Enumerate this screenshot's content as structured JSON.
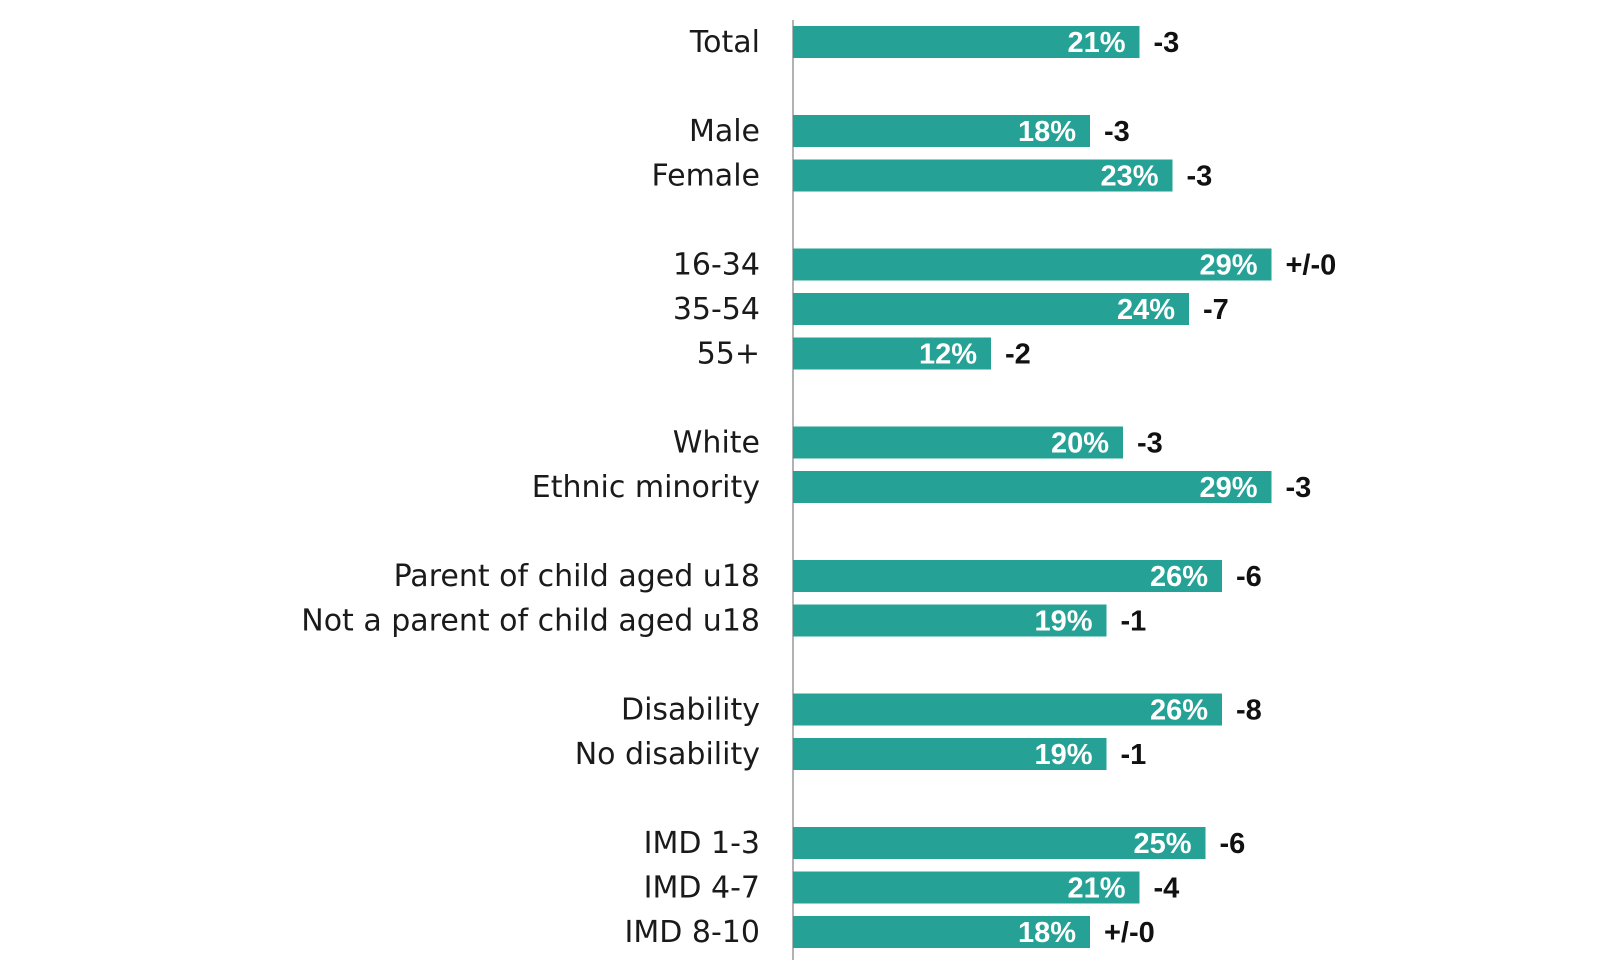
{
  "chart_data": {
    "type": "bar",
    "orientation": "horizontal",
    "title": "",
    "xlabel": "",
    "ylabel": "",
    "xlim": [
      0,
      55
    ],
    "grid": false,
    "legend": "none",
    "bar_color": "#26a195",
    "axis_color": "#999999",
    "groups": [
      [
        {
          "category": "Total",
          "value": 21,
          "value_label": "21%",
          "change": "-3"
        }
      ],
      [
        {
          "category": "Male",
          "value": 18,
          "value_label": "18%",
          "change": "-3"
        },
        {
          "category": "Female",
          "value": 23,
          "value_label": "23%",
          "change": "-3"
        }
      ],
      [
        {
          "category": "16-34",
          "value": 29,
          "value_label": "29%",
          "change": "+/-0"
        },
        {
          "category": "35-54",
          "value": 24,
          "value_label": "24%",
          "change": "-7"
        },
        {
          "category": "55+",
          "value": 12,
          "value_label": "12%",
          "change": "-2"
        }
      ],
      [
        {
          "category": "White",
          "value": 20,
          "value_label": "20%",
          "change": "-3"
        },
        {
          "category": "Ethnic minority",
          "value": 29,
          "value_label": "29%",
          "change": "-3"
        }
      ],
      [
        {
          "category": "Parent of child aged u18",
          "value": 26,
          "value_label": "26%",
          "change": "-6"
        },
        {
          "category": "Not a parent of child aged u18",
          "value": 19,
          "value_label": "19%",
          "change": "-1"
        }
      ],
      [
        {
          "category": "Disability",
          "value": 26,
          "value_label": "26%",
          "change": "-8"
        },
        {
          "category": "No disability",
          "value": 19,
          "value_label": "19%",
          "change": "-1"
        }
      ],
      [
        {
          "category": "IMD 1-3",
          "value": 25,
          "value_label": "25%",
          "change": "-6"
        },
        {
          "category": "IMD 4-7",
          "value": 21,
          "value_label": "21%",
          "change": "-4"
        },
        {
          "category": "IMD 8-10",
          "value": 18,
          "value_label": "18%",
          "change": "+/-0"
        }
      ]
    ]
  }
}
